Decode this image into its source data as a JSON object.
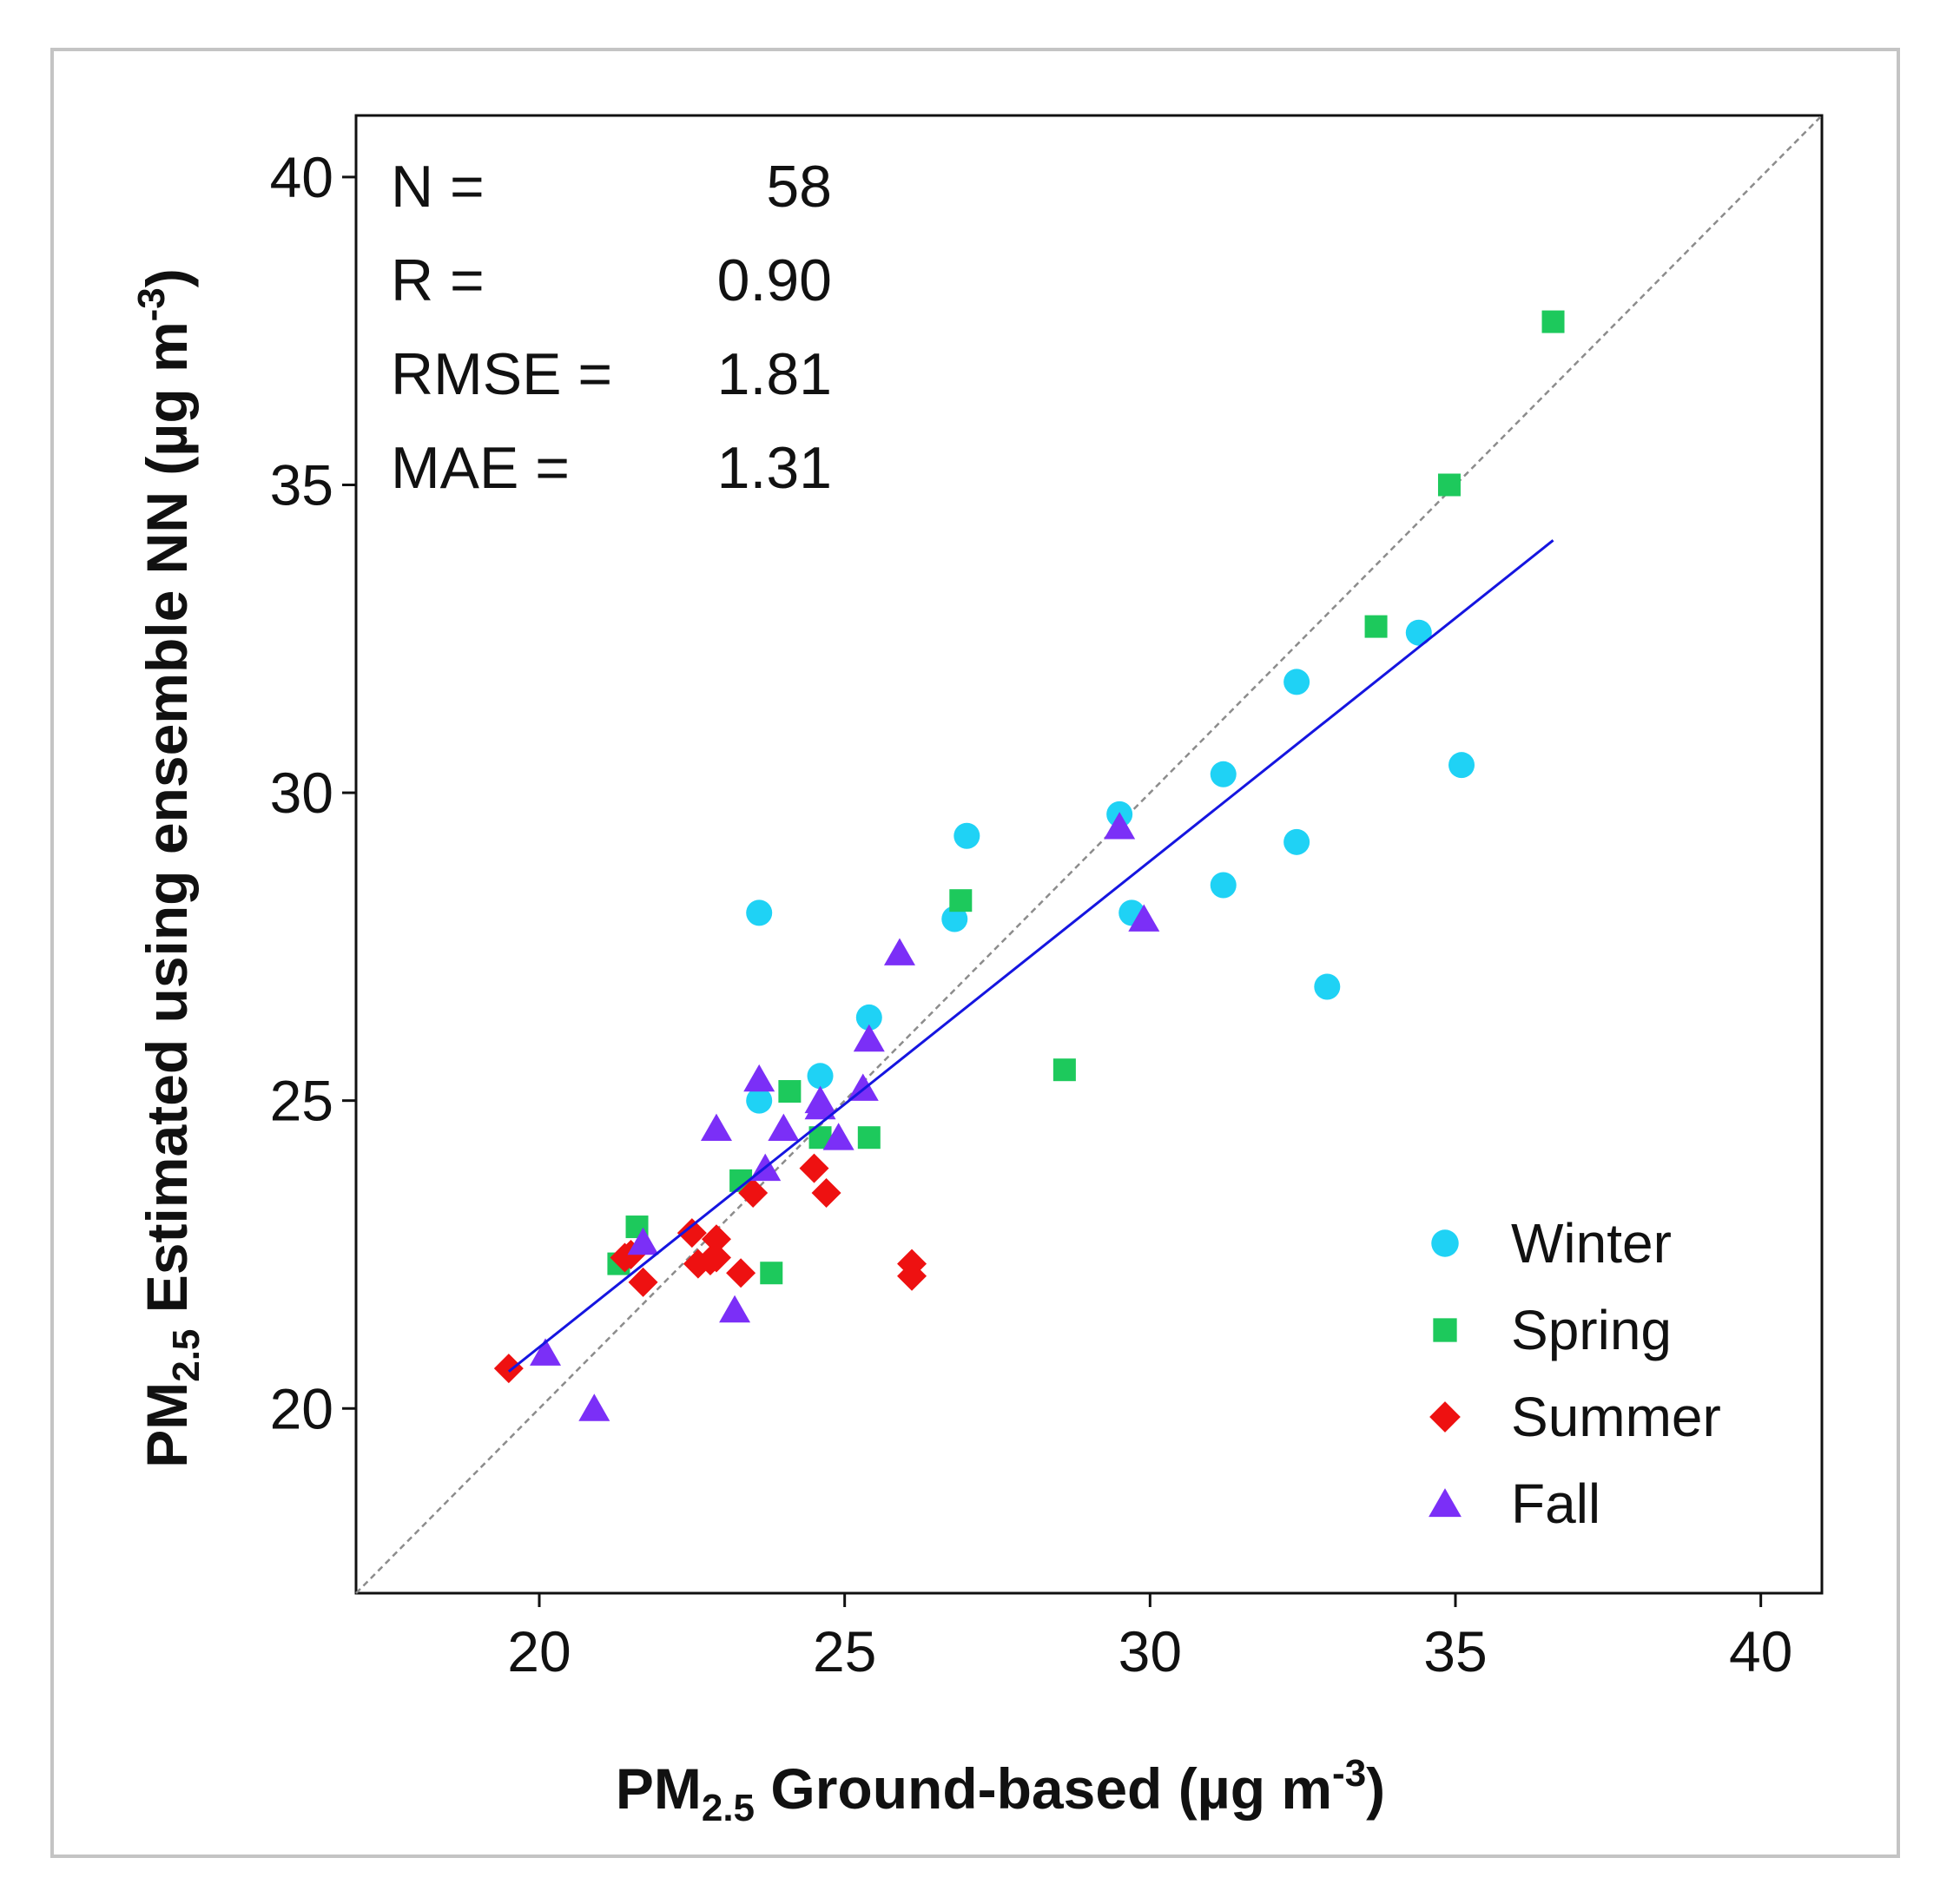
{
  "chart_data": {
    "type": "scatter",
    "title": "",
    "xlabel": {
      "prefix": "PM",
      "sub": "2.5",
      "text": " Ground-based (µg m",
      "sup": "-3",
      "suffix": ")"
    },
    "ylabel": {
      "prefix": "PM",
      "sub": "2.5",
      "text": "  Estimated using ensemble NN (µg m",
      "sup": "-3",
      "suffix": ")"
    },
    "xlim": [
      17,
      41
    ],
    "ylim": [
      17,
      41
    ],
    "xticks": [
      "20",
      "25",
      "30",
      "35",
      "40"
    ],
    "yticks": [
      "20",
      "25",
      "30",
      "35",
      "40"
    ],
    "stats": [
      {
        "label": "N =",
        "value": "58"
      },
      {
        "label": "R =",
        "value": "0.90"
      },
      {
        "label": "RMSE =",
        "value": "1.81"
      },
      {
        "label": "MAE =",
        "value": "1.31"
      }
    ],
    "reference_line": {
      "name": "1:1 line",
      "from": [
        17,
        17
      ],
      "to": [
        41,
        41
      ],
      "color": "#8c8c8c"
    },
    "fit_line": {
      "name": "regression",
      "from": [
        19.5,
        20.6
      ],
      "to": [
        36.6,
        34.1
      ],
      "color": "#1515e0"
    },
    "legend_position": "bottom-right",
    "series": [
      {
        "name": "Winter",
        "marker": "circle",
        "color": "#1fd2f5",
        "points": [
          [
            23.6,
            28.05
          ],
          [
            27.0,
            29.3
          ],
          [
            26.8,
            27.95
          ],
          [
            25.4,
            26.35
          ],
          [
            24.6,
            25.4
          ],
          [
            23.6,
            25.0
          ],
          [
            29.5,
            29.65
          ],
          [
            29.7,
            28.05
          ],
          [
            31.2,
            30.3
          ],
          [
            31.2,
            28.5
          ],
          [
            32.4,
            31.8
          ],
          [
            32.4,
            29.2
          ],
          [
            32.9,
            26.85
          ],
          [
            34.4,
            32.6
          ],
          [
            35.1,
            30.45
          ]
        ]
      },
      {
        "name": "Spring",
        "marker": "square",
        "color": "#1dc95c",
        "points": [
          [
            36.6,
            37.65
          ],
          [
            34.9,
            35.0
          ],
          [
            33.7,
            32.7
          ],
          [
            26.9,
            28.25
          ],
          [
            28.6,
            25.5
          ],
          [
            24.1,
            25.15
          ],
          [
            24.6,
            24.4
          ],
          [
            25.4,
            24.4
          ],
          [
            23.3,
            23.7
          ],
          [
            21.6,
            22.95
          ],
          [
            21.3,
            22.35
          ],
          [
            23.8,
            22.2
          ]
        ]
      },
      {
        "name": "Summer",
        "marker": "diamond",
        "color": "#ee1111",
        "points": [
          [
            19.5,
            20.65
          ],
          [
            21.4,
            22.45
          ],
          [
            21.5,
            22.5
          ],
          [
            21.7,
            22.05
          ],
          [
            22.5,
            22.85
          ],
          [
            22.6,
            22.35
          ],
          [
            22.8,
            22.4
          ],
          [
            22.9,
            22.75
          ],
          [
            22.9,
            22.45
          ],
          [
            23.3,
            22.2
          ],
          [
            23.5,
            23.5
          ],
          [
            24.5,
            23.9
          ],
          [
            24.7,
            23.5
          ],
          [
            26.1,
            22.35
          ],
          [
            26.1,
            22.15
          ]
        ]
      },
      {
        "name": "Fall",
        "marker": "triangle",
        "color": "#7b2ff7",
        "points": [
          [
            20.1,
            20.9
          ],
          [
            20.9,
            20.0
          ],
          [
            21.7,
            22.7
          ],
          [
            22.9,
            24.55
          ],
          [
            23.2,
            21.6
          ],
          [
            23.6,
            25.35
          ],
          [
            23.7,
            23.9
          ],
          [
            24.0,
            24.55
          ],
          [
            24.6,
            24.9
          ],
          [
            24.9,
            24.4
          ],
          [
            25.3,
            25.2
          ],
          [
            25.4,
            26.0
          ],
          [
            25.9,
            27.4
          ],
          [
            29.5,
            29.45
          ],
          [
            29.9,
            27.95
          ],
          [
            24.6,
            25.0
          ]
        ]
      }
    ]
  }
}
